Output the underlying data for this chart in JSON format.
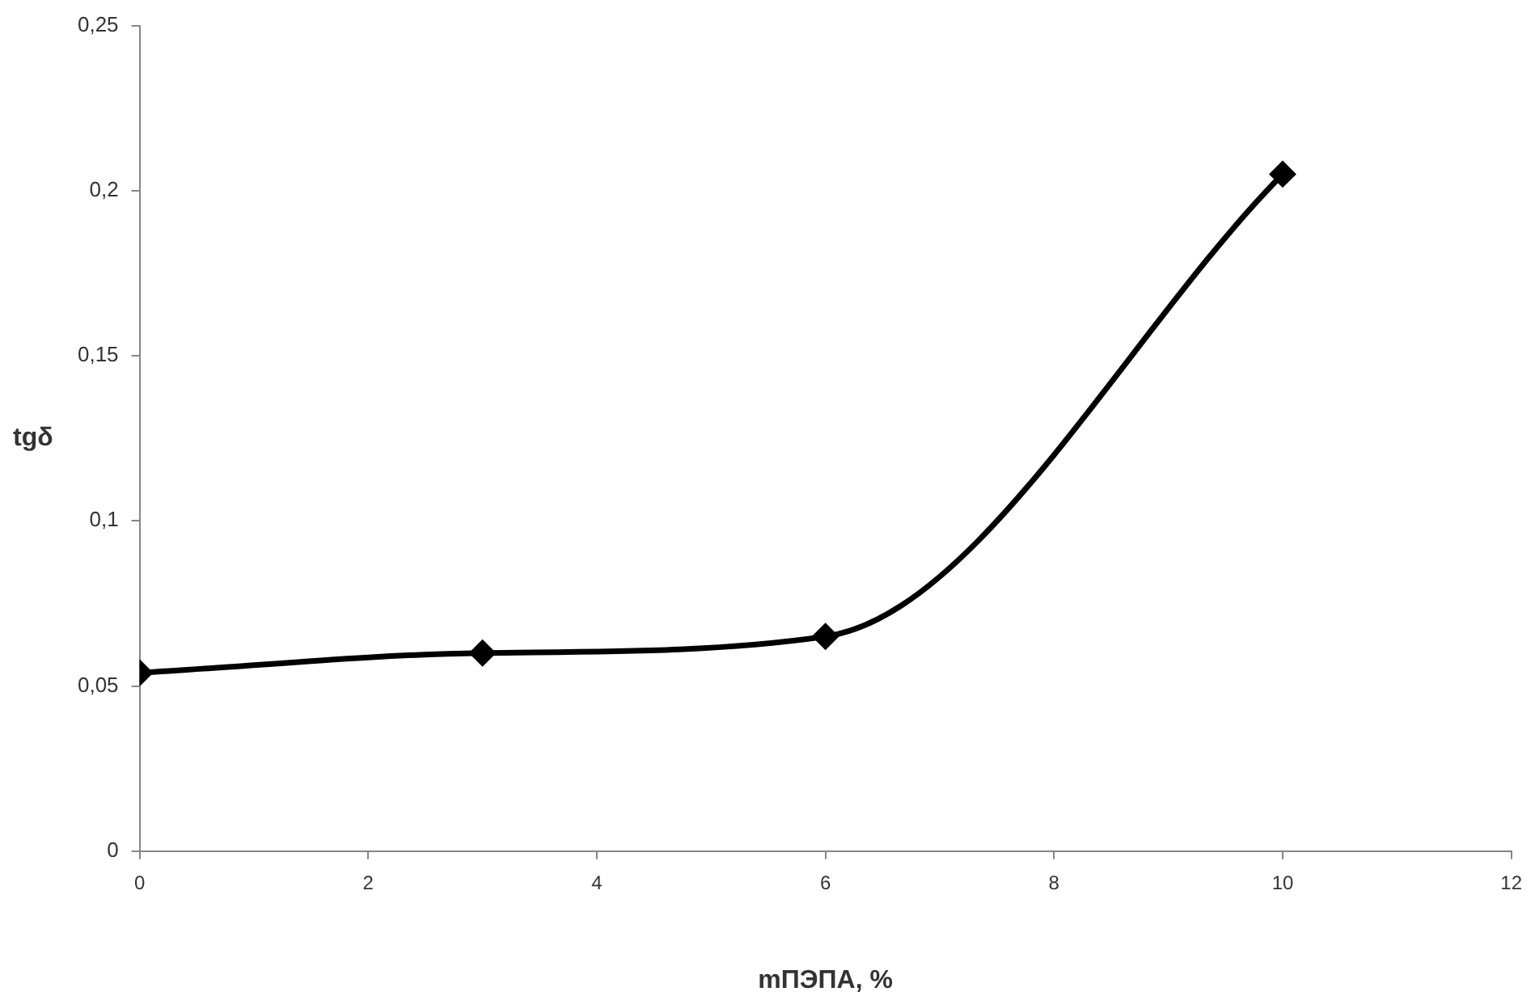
{
  "chart_data": {
    "type": "line",
    "xlabel": "mПЭПА, %",
    "ylabel": "tgδ",
    "x": [
      0,
      3,
      6,
      10
    ],
    "series": [
      {
        "color": "#000000",
        "values": [
          0.054,
          0.06,
          0.065,
          0.205
        ]
      }
    ],
    "xlim": [
      0,
      12
    ],
    "xticks": [
      0,
      2,
      4,
      6,
      8,
      10,
      12
    ],
    "ylim": [
      0,
      0.25
    ],
    "yticks": [
      0,
      {
        "value": 0.05,
        "label": "0,05"
      },
      {
        "value": 0.1,
        "label": "0,1"
      },
      {
        "value": 0.15,
        "label": "0,15"
      },
      {
        "value": 0.2,
        "label": "0,2"
      },
      {
        "value": 0.25,
        "label": "0,25"
      }
    ],
    "grid": false,
    "legend": false,
    "marker": "diamond",
    "line_style": "solid"
  }
}
